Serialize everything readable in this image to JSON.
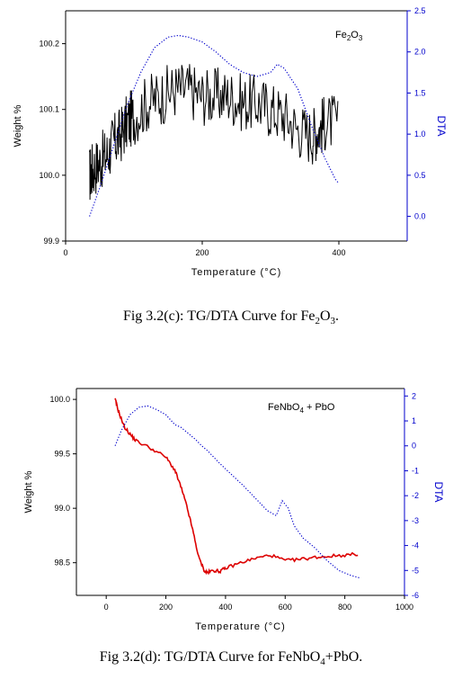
{
  "chart_data": [
    {
      "type": "line",
      "label_main": "Fe",
      "label_sub1": "2",
      "label_mid": "O",
      "label_sub2": "3",
      "xlabel": "Temperature (°C)",
      "ylabel_left": "Weight %",
      "ylabel_right": "DTA",
      "xlim": [
        0,
        500
      ],
      "xticks": [
        "0",
        "200",
        "400"
      ],
      "ylim_left": [
        99.9,
        100.25
      ],
      "yticks_left": [
        "99.9",
        "100.0",
        "100.1",
        "100.2"
      ],
      "ylim_right": [
        -0.3,
        2.5
      ],
      "yticks_right": [
        "0.0",
        "0.5",
        "1.0",
        "1.5",
        "2.0",
        "2.5"
      ],
      "colors": {
        "tg": "#000000",
        "dta": "#0000cc",
        "right_axis": "#0000cc"
      },
      "series": [
        {
          "axis": "left",
          "x": [
            35,
            40,
            50,
            60,
            70,
            80,
            90,
            100,
            120,
            140,
            160,
            180,
            200,
            220,
            240,
            260,
            280,
            300,
            320,
            340,
            360,
            370,
            380,
            400
          ],
          "y": [
            100.0,
            100.01,
            100.02,
            100.03,
            100.05,
            100.06,
            100.08,
            100.09,
            100.11,
            100.12,
            100.13,
            100.13,
            100.12,
            100.12,
            100.12,
            100.11,
            100.11,
            100.1,
            100.09,
            100.07,
            100.06,
            100.07,
            100.08,
            100.08
          ]
        },
        {
          "axis": "right",
          "style": "dotted",
          "x": [
            35,
            50,
            70,
            90,
            110,
            130,
            150,
            165,
            180,
            200,
            220,
            240,
            260,
            280,
            300,
            310,
            320,
            340,
            360,
            380,
            395,
            400
          ],
          "y": [
            0.0,
            0.35,
            0.85,
            1.35,
            1.75,
            2.05,
            2.18,
            2.2,
            2.18,
            2.12,
            2.0,
            1.85,
            1.75,
            1.7,
            1.75,
            1.85,
            1.8,
            1.55,
            1.1,
            0.7,
            0.45,
            0.4
          ]
        }
      ]
    },
    {
      "type": "line",
      "label_main": "FeNbO",
      "label_sub1": "4",
      "label_mid": " + PbO",
      "label_sub2": "",
      "xlabel": "Temperature (°C)",
      "ylabel_left": "Weight %",
      "ylabel_right": "DTA",
      "xlim": [
        -100,
        1000
      ],
      "xticks": [
        "0",
        "200",
        "400",
        "600",
        "800",
        "1000"
      ],
      "ylim_left": [
        98.2,
        100.1
      ],
      "yticks_left": [
        "98.5",
        "99.0",
        "99.5",
        "100.0"
      ],
      "ylim_right": [
        -6,
        2.3
      ],
      "yticks_right": [
        "2",
        "1",
        "0",
        "-1",
        "-2",
        "-3",
        "-4",
        "-5",
        "-6"
      ],
      "colors": {
        "tg": "#dd0000",
        "dta": "#0000cc",
        "right_axis": "#0000cc"
      },
      "series": [
        {
          "axis": "left",
          "x": [
            30,
            40,
            60,
            80,
            100,
            150,
            200,
            230,
            250,
            270,
            290,
            310,
            330,
            340,
            360,
            380,
            400,
            450,
            500,
            550,
            600,
            650,
            700,
            750,
            800,
            850
          ],
          "y": [
            100.0,
            99.9,
            99.75,
            99.68,
            99.62,
            99.55,
            99.47,
            99.35,
            99.2,
            99.02,
            98.8,
            98.55,
            98.42,
            98.41,
            98.43,
            98.42,
            98.45,
            98.5,
            98.54,
            98.57,
            98.52,
            98.53,
            98.55,
            98.56,
            98.57,
            98.58
          ]
        },
        {
          "axis": "right",
          "style": "dotted",
          "x": [
            30,
            50,
            80,
            110,
            140,
            170,
            200,
            230,
            250,
            270,
            300,
            320,
            340,
            380,
            420,
            460,
            500,
            540,
            570,
            590,
            610,
            630,
            660,
            700,
            740,
            780,
            820,
            850
          ],
          "y": [
            0.0,
            0.6,
            1.25,
            1.55,
            1.6,
            1.45,
            1.25,
            0.85,
            0.75,
            0.55,
            0.25,
            0.0,
            -0.2,
            -0.7,
            -1.15,
            -1.6,
            -2.1,
            -2.6,
            -2.8,
            -2.2,
            -2.5,
            -3.2,
            -3.7,
            -4.1,
            -4.6,
            -5.0,
            -5.2,
            -5.3
          ]
        }
      ]
    }
  ],
  "captions": [
    {
      "prefix": "Fig 3.2(c): TG/DTA Curve for Fe",
      "s1": "2",
      "mid": "O",
      "s2": "3",
      "suffix": "."
    },
    {
      "prefix": "Fig 3.2(d): TG/DTA Curve for FeNbO",
      "s1": "4",
      "mid": "+PbO.",
      "s2": "",
      "suffix": ""
    }
  ]
}
